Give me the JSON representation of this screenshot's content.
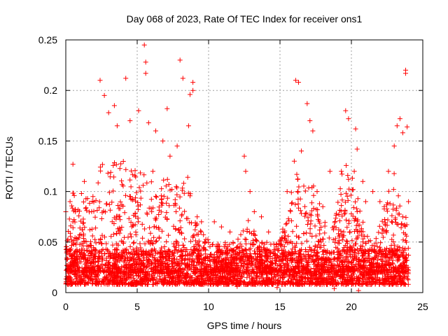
{
  "chart_data": {
    "type": "scatter",
    "title": "Day 068 of 2023, Rate Of TEC Index for receiver ons1",
    "xlabel": "GPS time / hours",
    "ylabel": "ROTI / TECUs",
    "xlim": [
      0,
      25
    ],
    "ylim": [
      0,
      0.25
    ],
    "xticks": [
      "0",
      "5",
      "10",
      "15",
      "20",
      "25"
    ],
    "yticks": [
      "0",
      "0.05",
      "0.1",
      "0.15",
      "0.2",
      "0.25"
    ],
    "grid": true,
    "legend": "none",
    "marker": "plus",
    "color": "#ff0000",
    "series": [
      {
        "name": "ROTI",
        "points": [
          [
            2.4,
            0.21
          ],
          [
            2.7,
            0.195
          ],
          [
            3.0,
            0.178
          ],
          [
            3.4,
            0.185
          ],
          [
            3.6,
            0.165
          ],
          [
            4.2,
            0.212
          ],
          [
            4.5,
            0.17
          ],
          [
            5.1,
            0.18
          ],
          [
            5.5,
            0.245
          ],
          [
            5.6,
            0.228
          ],
          [
            5.6,
            0.217
          ],
          [
            5.8,
            0.168
          ],
          [
            6.3,
            0.16
          ],
          [
            6.8,
            0.15
          ],
          [
            7.1,
            0.182
          ],
          [
            7.3,
            0.135
          ],
          [
            7.8,
            0.145
          ],
          [
            8.0,
            0.23
          ],
          [
            8.2,
            0.212
          ],
          [
            8.6,
            0.165
          ],
          [
            8.7,
            0.196
          ],
          [
            8.9,
            0.208
          ],
          [
            8.9,
            0.2
          ],
          [
            9.2,
            0.075
          ],
          [
            9.5,
            0.07
          ],
          [
            10.4,
            0.07
          ],
          [
            12.5,
            0.135
          ],
          [
            12.6,
            0.12
          ],
          [
            12.9,
            0.1
          ],
          [
            13.2,
            0.08
          ],
          [
            13.7,
            0.075
          ],
          [
            15.5,
            0.1
          ],
          [
            16.0,
            0.13
          ],
          [
            16.1,
            0.21
          ],
          [
            16.3,
            0.208
          ],
          [
            16.5,
            0.14
          ],
          [
            16.9,
            0.187
          ],
          [
            17.1,
            0.17
          ],
          [
            17.3,
            0.16
          ],
          [
            17.6,
            0.1
          ],
          [
            18.5,
            0.12
          ],
          [
            19.3,
            0.12
          ],
          [
            19.6,
            0.18
          ],
          [
            19.8,
            0.172
          ],
          [
            20.2,
            0.12
          ],
          [
            20.3,
            0.162
          ],
          [
            20.4,
            0.142
          ],
          [
            20.8,
            0.11
          ],
          [
            21.5,
            0.1
          ],
          [
            22.0,
            0.09
          ],
          [
            22.6,
            0.12
          ],
          [
            23.0,
            0.145
          ],
          [
            23.2,
            0.165
          ],
          [
            23.4,
            0.172
          ],
          [
            23.6,
            0.158
          ],
          [
            23.8,
            0.22
          ],
          [
            23.8,
            0.217
          ],
          [
            23.9,
            0.164
          ],
          [
            1.1,
            0.098
          ],
          [
            1.3,
            0.11
          ],
          [
            0.5,
            0.127
          ],
          [
            0.3,
            0.09
          ],
          [
            1.9,
            0.095
          ],
          [
            6.1,
            0.12
          ],
          [
            10.9,
            0.065
          ],
          [
            11.5,
            0.06
          ],
          [
            14.2,
            0.06
          ],
          [
            18.0,
            0.085
          ],
          [
            21.0,
            0.09
          ],
          [
            22.3,
            0.085
          ],
          [
            0.0,
            0.08
          ],
          [
            24.0,
            0.09
          ],
          [
            20.5,
            0.002
          ],
          [
            18.8,
            0.004
          ],
          [
            14.8,
            0.005
          ],
          [
            12.0,
            0.006
          ]
        ],
        "density_profile": {
          "hours": [
            0,
            0.5,
            1,
            1.5,
            2,
            2.5,
            3,
            3.5,
            4,
            4.5,
            5,
            5.5,
            6,
            6.5,
            7,
            7.5,
            8,
            8.5,
            9,
            9.5,
            10,
            10.5,
            11,
            11.5,
            12,
            12.5,
            13,
            13.5,
            14,
            14.5,
            15,
            15.5,
            16,
            16.5,
            17,
            17.5,
            18,
            18.5,
            19,
            19.5,
            20,
            20.5,
            21,
            21.5,
            22,
            22.5,
            23,
            23.5,
            24
          ],
          "upper_envelope_roti": [
            0.06,
            0.1,
            0.08,
            0.1,
            0.09,
            0.14,
            0.13,
            0.13,
            0.13,
            0.13,
            0.12,
            0.12,
            0.11,
            0.1,
            0.12,
            0.1,
            0.12,
            0.12,
            0.08,
            0.06,
            0.055,
            0.05,
            0.05,
            0.05,
            0.05,
            0.08,
            0.07,
            0.05,
            0.05,
            0.05,
            0.06,
            0.07,
            0.13,
            0.1,
            0.12,
            0.1,
            0.08,
            0.07,
            0.09,
            0.13,
            0.13,
            0.09,
            0.06,
            0.05,
            0.07,
            0.1,
            0.12,
            0.1,
            0.07
          ]
        }
      }
    ]
  }
}
